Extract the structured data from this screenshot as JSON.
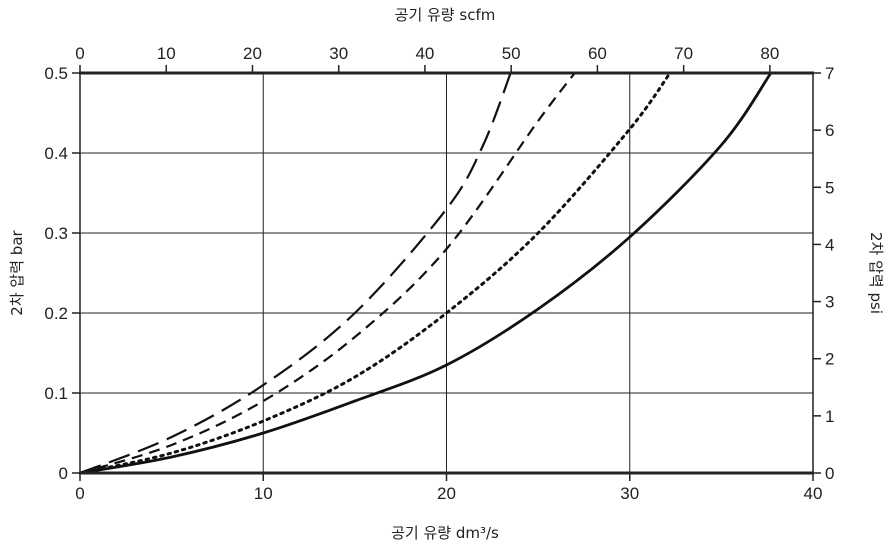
{
  "chart_data": {
    "type": "line",
    "title": "",
    "xlabel": "공기 유량 dm³/s",
    "xlabel_top": "공기 유량 scfm",
    "ylabel": "2차 압력 bar",
    "ylabel_right": "2차 압력 psi",
    "xlim": [
      0,
      40
    ],
    "ylim": [
      0,
      0.5
    ],
    "xlim_top": [
      0,
      85
    ],
    "ylim_right": [
      0,
      7
    ],
    "grid": true,
    "x_ticks": [
      "0",
      "10",
      "20",
      "30",
      "40"
    ],
    "y_ticks": [
      "0",
      "0.1",
      "0.2",
      "0.3",
      "0.4",
      "0.5"
    ],
    "top_ticks": [
      "0",
      "10",
      "20",
      "30",
      "40",
      "50",
      "60",
      "70",
      "80"
    ],
    "right_ticks": [
      "0",
      "1",
      "2",
      "3",
      "4",
      "5",
      "6",
      "7"
    ],
    "series": [
      {
        "style": "long-dash",
        "x": [
          0,
          5,
          10,
          15,
          20,
          22,
          23.5
        ],
        "y": [
          0,
          0.045,
          0.11,
          0.2,
          0.33,
          0.41,
          0.5
        ]
      },
      {
        "style": "short-dash",
        "x": [
          0,
          5,
          10,
          15,
          20,
          25,
          27
        ],
        "y": [
          0,
          0.035,
          0.09,
          0.17,
          0.28,
          0.44,
          0.5
        ]
      },
      {
        "style": "dotted",
        "x": [
          0,
          5,
          10,
          15,
          20,
          25,
          30,
          32.2
        ],
        "y": [
          0,
          0.025,
          0.065,
          0.12,
          0.2,
          0.3,
          0.43,
          0.5
        ]
      },
      {
        "style": "solid",
        "x": [
          0,
          5,
          10,
          15,
          20,
          25,
          30,
          35,
          37.7
        ],
        "y": [
          0,
          0.02,
          0.05,
          0.09,
          0.135,
          0.205,
          0.295,
          0.41,
          0.5
        ]
      }
    ]
  }
}
